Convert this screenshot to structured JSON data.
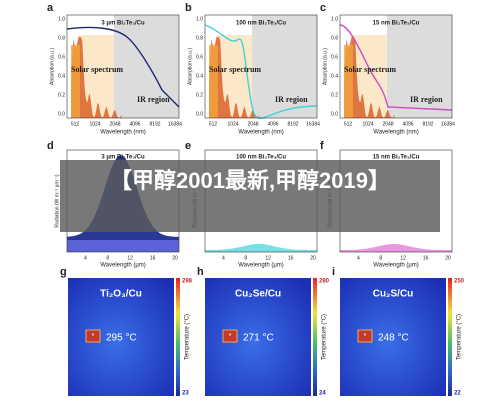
{
  "banner": "【甲醇2001最新,甲醇2019】",
  "top_axes": {
    "ylabel": "Absorption (a.u.)",
    "xlabel": "Wavelength (nm)",
    "xticks": [
      "512",
      "1024",
      "2048",
      "4096",
      "8192",
      "16384"
    ],
    "yticks": [
      "0.0",
      "0.2",
      "0.4",
      "0.6",
      "0.8",
      "1.0"
    ],
    "solar": "Solar spectrum",
    "ir": "IR region"
  },
  "top_panels": [
    {
      "letter": "a",
      "title": "3 μm Bi₂Te₃/Cu"
    },
    {
      "letter": "b",
      "title": "100 nm Bi₂Te₃/Cu"
    },
    {
      "letter": "c",
      "title": "15 nm Bi₂Te₃/Cu"
    }
  ],
  "mid_axes": {
    "ylabel": "Radiation (W m⁻² μm⁻¹)",
    "xlabel": "Wavelength (μm)",
    "xticks": [
      "4",
      "8",
      "12",
      "16",
      "20"
    ]
  },
  "mid_panels": [
    {
      "letter": "d",
      "title": "3 μm Bi₂Te₃/Cu"
    },
    {
      "letter": "e",
      "title": "100 nm Bi₂Te₃/Cu"
    },
    {
      "letter": "f",
      "title": "15 nm Bi₂Te₃/Cu"
    }
  ],
  "bottom_axes": {
    "colorbar_label": "Temperature (°C)"
  },
  "bottom_panels": [
    {
      "letter": "g",
      "material": "Ti₂O₃/Cu",
      "temperature": "295 °C",
      "max": "298",
      "min": "23"
    },
    {
      "letter": "h",
      "material": "Cu₂Se/Cu",
      "temperature": "271 °C",
      "max": "280",
      "min": "24"
    },
    {
      "letter": "i",
      "material": "Cu₂S/Cu",
      "temperature": "248 °C",
      "max": "250",
      "min": "22"
    }
  ]
}
